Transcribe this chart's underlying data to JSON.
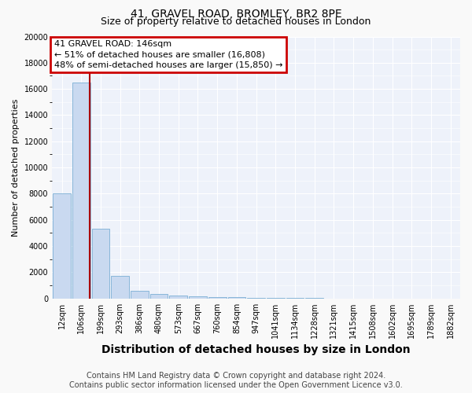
{
  "title": "41, GRAVEL ROAD, BROMLEY, BR2 8PE",
  "subtitle": "Size of property relative to detached houses in London",
  "xlabel": "Distribution of detached houses by size in London",
  "ylabel": "Number of detached properties",
  "categories": [
    "12sqm",
    "106sqm",
    "199sqm",
    "293sqm",
    "386sqm",
    "480sqm",
    "573sqm",
    "667sqm",
    "760sqm",
    "854sqm",
    "947sqm",
    "1041sqm",
    "1134sqm",
    "1228sqm",
    "1321sqm",
    "1415sqm",
    "1508sqm",
    "1602sqm",
    "1695sqm",
    "1789sqm",
    "1882sqm"
  ],
  "values": [
    8050,
    16500,
    5300,
    1750,
    600,
    350,
    200,
    150,
    120,
    90,
    70,
    50,
    35,
    25,
    18,
    12,
    9,
    7,
    5,
    4,
    3
  ],
  "bar_color": "#c9d9f0",
  "bar_edgecolor": "#7bafd4",
  "red_line_color": "#aa0000",
  "annotation_title": "41 GRAVEL ROAD: 146sqm",
  "annotation_line1": "← 51% of detached houses are smaller (16,808)",
  "annotation_line2": "48% of semi-detached houses are larger (15,850) →",
  "annotation_box_edgecolor": "#cc0000",
  "ylim": [
    0,
    20000
  ],
  "yticks": [
    0,
    2000,
    4000,
    6000,
    8000,
    10000,
    12000,
    14000,
    16000,
    18000,
    20000
  ],
  "fig_background": "#f9f9f9",
  "plot_background": "#eef2fa",
  "grid_color": "#ffffff",
  "title_fontsize": 10,
  "subtitle_fontsize": 9,
  "xlabel_fontsize": 10,
  "ylabel_fontsize": 8,
  "tick_fontsize": 7,
  "annotation_fontsize": 8,
  "footer_fontsize": 7,
  "footer_line1": "Contains HM Land Registry data © Crown copyright and database right 2024.",
  "footer_line2": "Contains public sector information licensed under the Open Government Licence v3.0."
}
